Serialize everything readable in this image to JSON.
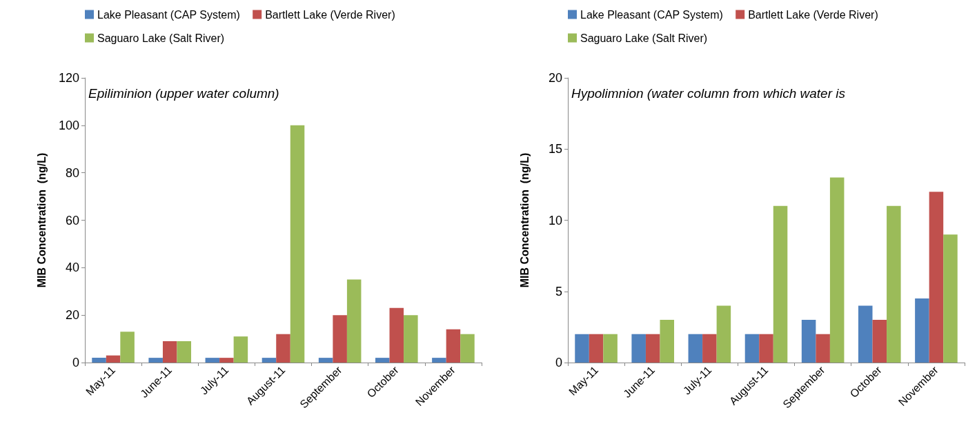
{
  "chart_data": [
    {
      "type": "bar",
      "categories": [
        "May-11",
        "June-11",
        "July-11",
        "August-11",
        "September",
        "October",
        "November"
      ],
      "series": [
        {
          "name": "Lake Pleasant (CAP System)",
          "color": "#4f81bd",
          "values": [
            2,
            2,
            2,
            2,
            2,
            2,
            2
          ]
        },
        {
          "name": "Bartlett Lake (Verde River)",
          "color": "#c0504d",
          "values": [
            3,
            9,
            2,
            12,
            20,
            23,
            14
          ]
        },
        {
          "name": "Saguaro Lake (Salt River)",
          "color": "#9bbb59",
          "values": [
            13,
            9,
            11,
            100,
            35,
            20,
            12
          ]
        }
      ],
      "ylabel": "MIB Concentration  (ng/L)",
      "ylim": [
        0,
        120
      ],
      "yticks": [
        0,
        20,
        40,
        60,
        80,
        100,
        120
      ],
      "grid": false,
      "legend": "top",
      "annotations": [
        "Epiliminion (upper water column)"
      ]
    },
    {
      "type": "bar",
      "categories": [
        "May-11",
        "June-11",
        "July-11",
        "August-11",
        "September",
        "October",
        "November"
      ],
      "series": [
        {
          "name": "Lake Pleasant (CAP System)",
          "color": "#4f81bd",
          "values": [
            2,
            2,
            2,
            2,
            3,
            4,
            4.5
          ]
        },
        {
          "name": "Bartlett Lake (Verde River)",
          "color": "#c0504d",
          "values": [
            2,
            2,
            2,
            2,
            2,
            3,
            12
          ]
        },
        {
          "name": "Saguaro Lake (Salt River)",
          "color": "#9bbb59",
          "values": [
            2,
            3,
            4,
            11,
            13,
            11,
            9
          ]
        }
      ],
      "ylabel": "MIB Concentration  (ng/L)",
      "ylim": [
        0,
        20
      ],
      "yticks": [
        0,
        5,
        10,
        15,
        20
      ],
      "grid": false,
      "legend": "top",
      "annotations": [
        "Hypolimnion (water column from which water is"
      ]
    }
  ]
}
